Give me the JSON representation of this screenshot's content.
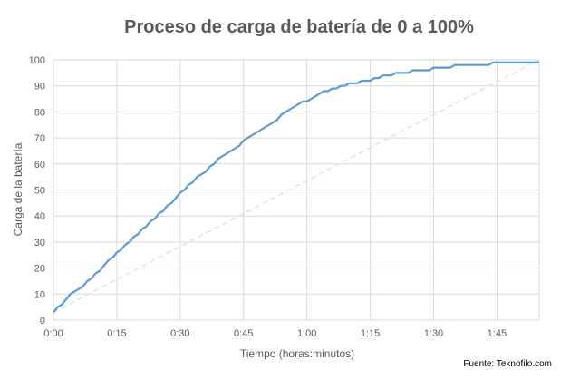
{
  "chart_data": {
    "type": "line",
    "title": "Proceso de carga de batería de 0 a 100%",
    "xlabel": "Tiempo (horas:minutos)",
    "ylabel": "Carga de la batería",
    "source": "Fuente: Teknofilo.com",
    "xlim": [
      0,
      115
    ],
    "ylim": [
      0,
      100
    ],
    "yticks": [
      0,
      10,
      20,
      30,
      40,
      50,
      60,
      70,
      80,
      90,
      100
    ],
    "xticks": [
      {
        "value": 0,
        "label": "0:00"
      },
      {
        "value": 15,
        "label": "0:15"
      },
      {
        "value": 30,
        "label": "0:30"
      },
      {
        "value": 45,
        "label": "0:45"
      },
      {
        "value": 60,
        "label": "1:00"
      },
      {
        "value": 75,
        "label": "1:15"
      },
      {
        "value": 90,
        "label": "1:30"
      },
      {
        "value": 105,
        "label": "1:45"
      }
    ],
    "grid": true,
    "colors": {
      "series": "#5b9bd5",
      "reference": "#d6e6f4",
      "grid": "#d9d9d9"
    },
    "series": [
      {
        "style": "solid",
        "x": [
          0,
          0.5,
          1,
          2,
          3,
          4,
          5,
          6,
          7,
          8,
          9,
          10,
          11,
          12,
          13,
          14,
          15,
          16,
          17,
          18,
          19,
          20,
          21,
          22,
          23,
          24,
          25,
          26,
          27,
          28,
          29,
          30,
          31,
          32,
          33,
          34,
          35,
          36,
          37,
          38,
          39,
          40,
          41,
          42,
          43,
          44,
          45,
          46,
          47,
          48,
          49,
          50,
          51,
          52,
          53,
          54,
          55,
          56,
          57,
          58,
          59,
          60,
          61,
          62,
          63,
          64,
          65,
          66,
          67,
          68,
          69,
          70,
          71,
          72,
          73,
          74,
          75,
          76,
          77,
          78,
          79,
          80,
          81,
          82,
          83,
          84,
          85,
          86,
          87,
          88,
          89,
          90,
          91,
          92,
          93,
          94,
          95,
          96,
          97,
          98,
          99,
          100,
          101,
          102,
          103,
          104,
          105,
          106,
          107,
          108,
          109,
          110,
          111,
          112,
          113,
          114,
          115
        ],
        "y": [
          3,
          4,
          5,
          6,
          8,
          10,
          11,
          12,
          13,
          15,
          16,
          18,
          19,
          21,
          23,
          24,
          26,
          27,
          29,
          30,
          32,
          33,
          35,
          36,
          38,
          39,
          41,
          42,
          44,
          45,
          47,
          49,
          50,
          52,
          53,
          55,
          56,
          57,
          59,
          60,
          62,
          63,
          64,
          65,
          66,
          67,
          69,
          70,
          71,
          72,
          73,
          74,
          75,
          76,
          77,
          79,
          80,
          81,
          82,
          83,
          84,
          84,
          85,
          86,
          87,
          88,
          88,
          89,
          89,
          90,
          90,
          91,
          91,
          91,
          92,
          92,
          92,
          93,
          93,
          94,
          94,
          94,
          95,
          95,
          95,
          95,
          96,
          96,
          96,
          96,
          96,
          97,
          97,
          97,
          97,
          97,
          98,
          98,
          98,
          98,
          98,
          98,
          98,
          98,
          98,
          99,
          99,
          99,
          99,
          99,
          99,
          99,
          99,
          99,
          99,
          99,
          99
        ]
      },
      {
        "style": "dashed",
        "x": [
          0,
          115
        ],
        "y": [
          3,
          100
        ]
      }
    ]
  }
}
